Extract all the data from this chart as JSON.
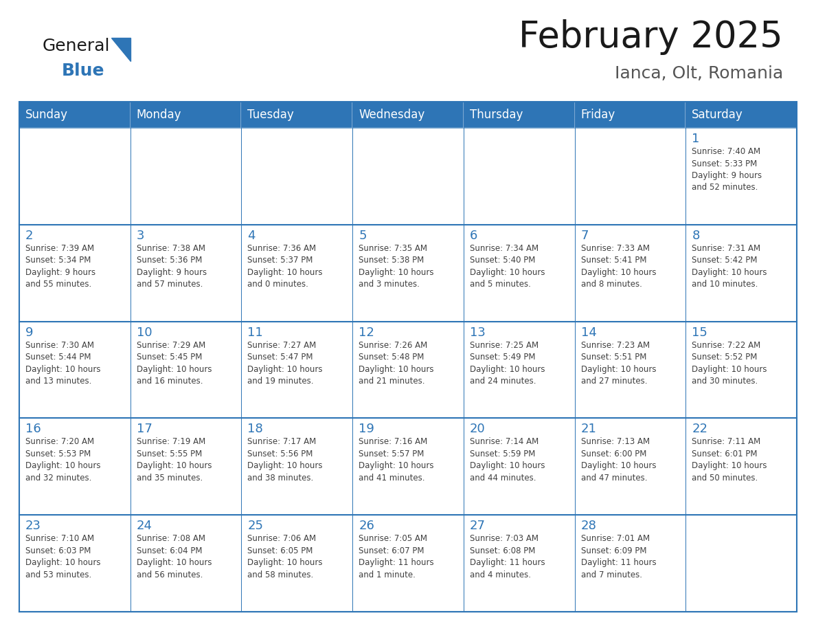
{
  "title": "February 2025",
  "subtitle": "Ianca, Olt, Romania",
  "days_of_week": [
    "Sunday",
    "Monday",
    "Tuesday",
    "Wednesday",
    "Thursday",
    "Friday",
    "Saturday"
  ],
  "header_bg": "#2E75B6",
  "header_text_color": "#FFFFFF",
  "cell_bg_white": "#FFFFFF",
  "border_color": "#2E75B6",
  "day_number_color": "#2E75B6",
  "info_text_color": "#404040",
  "title_color": "#1a1a1a",
  "subtitle_color": "#555555",
  "logo_general_color": "#1a1a1a",
  "logo_blue_color": "#2E75B6",
  "weeks": [
    [
      {
        "day": null,
        "info": ""
      },
      {
        "day": null,
        "info": ""
      },
      {
        "day": null,
        "info": ""
      },
      {
        "day": null,
        "info": ""
      },
      {
        "day": null,
        "info": ""
      },
      {
        "day": null,
        "info": ""
      },
      {
        "day": 1,
        "info": "Sunrise: 7:40 AM\nSunset: 5:33 PM\nDaylight: 9 hours\nand 52 minutes."
      }
    ],
    [
      {
        "day": 2,
        "info": "Sunrise: 7:39 AM\nSunset: 5:34 PM\nDaylight: 9 hours\nand 55 minutes."
      },
      {
        "day": 3,
        "info": "Sunrise: 7:38 AM\nSunset: 5:36 PM\nDaylight: 9 hours\nand 57 minutes."
      },
      {
        "day": 4,
        "info": "Sunrise: 7:36 AM\nSunset: 5:37 PM\nDaylight: 10 hours\nand 0 minutes."
      },
      {
        "day": 5,
        "info": "Sunrise: 7:35 AM\nSunset: 5:38 PM\nDaylight: 10 hours\nand 3 minutes."
      },
      {
        "day": 6,
        "info": "Sunrise: 7:34 AM\nSunset: 5:40 PM\nDaylight: 10 hours\nand 5 minutes."
      },
      {
        "day": 7,
        "info": "Sunrise: 7:33 AM\nSunset: 5:41 PM\nDaylight: 10 hours\nand 8 minutes."
      },
      {
        "day": 8,
        "info": "Sunrise: 7:31 AM\nSunset: 5:42 PM\nDaylight: 10 hours\nand 10 minutes."
      }
    ],
    [
      {
        "day": 9,
        "info": "Sunrise: 7:30 AM\nSunset: 5:44 PM\nDaylight: 10 hours\nand 13 minutes."
      },
      {
        "day": 10,
        "info": "Sunrise: 7:29 AM\nSunset: 5:45 PM\nDaylight: 10 hours\nand 16 minutes."
      },
      {
        "day": 11,
        "info": "Sunrise: 7:27 AM\nSunset: 5:47 PM\nDaylight: 10 hours\nand 19 minutes."
      },
      {
        "day": 12,
        "info": "Sunrise: 7:26 AM\nSunset: 5:48 PM\nDaylight: 10 hours\nand 21 minutes."
      },
      {
        "day": 13,
        "info": "Sunrise: 7:25 AM\nSunset: 5:49 PM\nDaylight: 10 hours\nand 24 minutes."
      },
      {
        "day": 14,
        "info": "Sunrise: 7:23 AM\nSunset: 5:51 PM\nDaylight: 10 hours\nand 27 minutes."
      },
      {
        "day": 15,
        "info": "Sunrise: 7:22 AM\nSunset: 5:52 PM\nDaylight: 10 hours\nand 30 minutes."
      }
    ],
    [
      {
        "day": 16,
        "info": "Sunrise: 7:20 AM\nSunset: 5:53 PM\nDaylight: 10 hours\nand 32 minutes."
      },
      {
        "day": 17,
        "info": "Sunrise: 7:19 AM\nSunset: 5:55 PM\nDaylight: 10 hours\nand 35 minutes."
      },
      {
        "day": 18,
        "info": "Sunrise: 7:17 AM\nSunset: 5:56 PM\nDaylight: 10 hours\nand 38 minutes."
      },
      {
        "day": 19,
        "info": "Sunrise: 7:16 AM\nSunset: 5:57 PM\nDaylight: 10 hours\nand 41 minutes."
      },
      {
        "day": 20,
        "info": "Sunrise: 7:14 AM\nSunset: 5:59 PM\nDaylight: 10 hours\nand 44 minutes."
      },
      {
        "day": 21,
        "info": "Sunrise: 7:13 AM\nSunset: 6:00 PM\nDaylight: 10 hours\nand 47 minutes."
      },
      {
        "day": 22,
        "info": "Sunrise: 7:11 AM\nSunset: 6:01 PM\nDaylight: 10 hours\nand 50 minutes."
      }
    ],
    [
      {
        "day": 23,
        "info": "Sunrise: 7:10 AM\nSunset: 6:03 PM\nDaylight: 10 hours\nand 53 minutes."
      },
      {
        "day": 24,
        "info": "Sunrise: 7:08 AM\nSunset: 6:04 PM\nDaylight: 10 hours\nand 56 minutes."
      },
      {
        "day": 25,
        "info": "Sunrise: 7:06 AM\nSunset: 6:05 PM\nDaylight: 10 hours\nand 58 minutes."
      },
      {
        "day": 26,
        "info": "Sunrise: 7:05 AM\nSunset: 6:07 PM\nDaylight: 11 hours\nand 1 minute."
      },
      {
        "day": 27,
        "info": "Sunrise: 7:03 AM\nSunset: 6:08 PM\nDaylight: 11 hours\nand 4 minutes."
      },
      {
        "day": 28,
        "info": "Sunrise: 7:01 AM\nSunset: 6:09 PM\nDaylight: 11 hours\nand 7 minutes."
      },
      {
        "day": null,
        "info": ""
      }
    ]
  ]
}
